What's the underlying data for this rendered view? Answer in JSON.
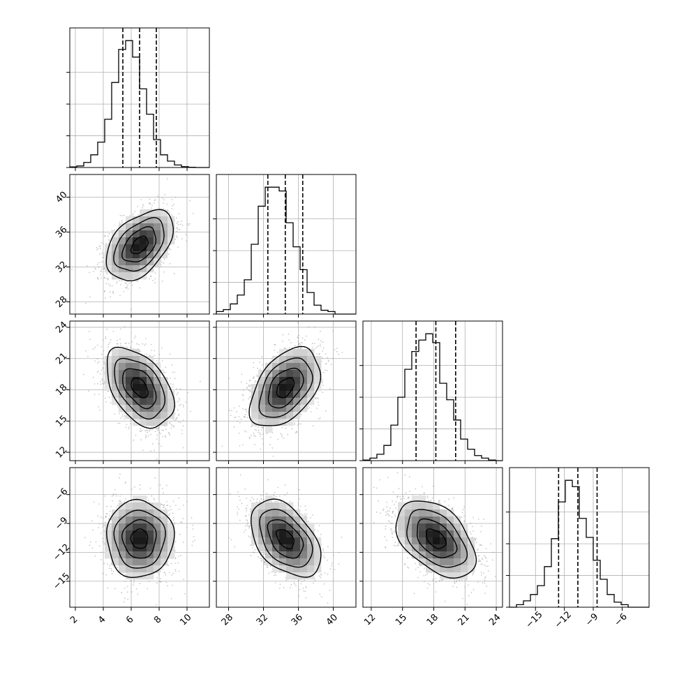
{
  "chart_data": {
    "type": "corner",
    "title": "",
    "n_parameters": 4,
    "parameters": [
      {
        "label": "",
        "range": [
          1.6,
          11.6
        ],
        "median": 6.6,
        "q16": 5.4,
        "q84": 7.8,
        "ticks": [
          2,
          4,
          6,
          8,
          10
        ],
        "tick_labels": [
          "2",
          "4",
          "6",
          "8",
          "10"
        ],
        "hist": [
          0.005,
          0.012,
          0.04,
          0.1,
          0.2,
          0.38,
          0.67,
          0.93,
          1.0,
          0.87,
          0.62,
          0.42,
          0.22,
          0.1,
          0.05,
          0.02,
          0.007,
          0.002,
          0.0,
          0.0
        ]
      },
      {
        "label": "",
        "range": [
          26.6,
          42.6
        ],
        "median": 34.5,
        "q16": 32.5,
        "q84": 36.5,
        "ticks": [
          28,
          32,
          36,
          40
        ],
        "tick_labels": [
          "28",
          "32",
          "36",
          "40"
        ],
        "hist": [
          0.02,
          0.035,
          0.08,
          0.15,
          0.27,
          0.55,
          0.85,
          1.0,
          1.0,
          0.97,
          0.72,
          0.53,
          0.35,
          0.17,
          0.07,
          0.03,
          0.02,
          0.0,
          0.0,
          0.0
        ]
      },
      {
        "label": "",
        "range": [
          11.2,
          24.6
        ],
        "median": 18.2,
        "q16": 16.3,
        "q84": 20.1,
        "ticks": [
          12,
          15,
          18,
          21,
          24
        ],
        "tick_labels": [
          "12",
          "15",
          "18",
          "21",
          "24"
        ],
        "hist": [
          0.005,
          0.02,
          0.05,
          0.12,
          0.28,
          0.5,
          0.72,
          0.86,
          0.95,
          1.0,
          0.93,
          0.61,
          0.48,
          0.32,
          0.17,
          0.09,
          0.04,
          0.02,
          0.005,
          0.0
        ]
      },
      {
        "label": "",
        "range": [
          -17.7,
          -3.2
        ],
        "median": -10.6,
        "q16": -12.6,
        "q84": -8.6,
        "ticks": [
          -15,
          -12,
          -9,
          -6
        ],
        "tick_labels": [
          "−15",
          "−12",
          "−9",
          "−6"
        ],
        "hist": [
          0.0,
          0.02,
          0.05,
          0.1,
          0.17,
          0.32,
          0.54,
          0.83,
          1.0,
          0.95,
          0.7,
          0.55,
          0.37,
          0.22,
          0.1,
          0.04,
          0.02,
          0.0,
          0.0,
          0.0
        ]
      }
    ],
    "hist_y_ticks": [
      0.25,
      0.5,
      0.75
    ],
    "hist_ylim": [
      0,
      1.1
    ],
    "pairs": [
      {
        "row": 1,
        "col": 0,
        "mean": [
          6.6,
          34.5
        ],
        "sd": [
          1.2,
          2.0
        ],
        "rho": 0.45
      },
      {
        "row": 2,
        "col": 0,
        "mean": [
          6.6,
          18.2
        ],
        "sd": [
          1.2,
          1.9
        ],
        "rho": -0.45
      },
      {
        "row": 2,
        "col": 1,
        "mean": [
          34.5,
          18.2
        ],
        "sd": [
          2.0,
          1.9
        ],
        "rho": 0.45
      },
      {
        "row": 3,
        "col": 0,
        "mean": [
          6.6,
          -10.6
        ],
        "sd": [
          1.2,
          2.0
        ],
        "rho": 0.0
      },
      {
        "row": 3,
        "col": 1,
        "mean": [
          34.5,
          -10.6
        ],
        "sd": [
          2.0,
          2.0
        ],
        "rho": -0.45
      },
      {
        "row": 3,
        "col": 2,
        "mean": [
          18.2,
          -10.6
        ],
        "sd": [
          1.9,
          2.0
        ],
        "rho": -0.45
      }
    ],
    "contour_levels_sigma": [
      0.5,
      1.0,
      1.5,
      2.0
    ],
    "grid": true,
    "colors": {
      "line": "#000000",
      "grid": "#b0b0b0",
      "scatter": "#9a9a9a",
      "background": "#ffffff"
    }
  }
}
